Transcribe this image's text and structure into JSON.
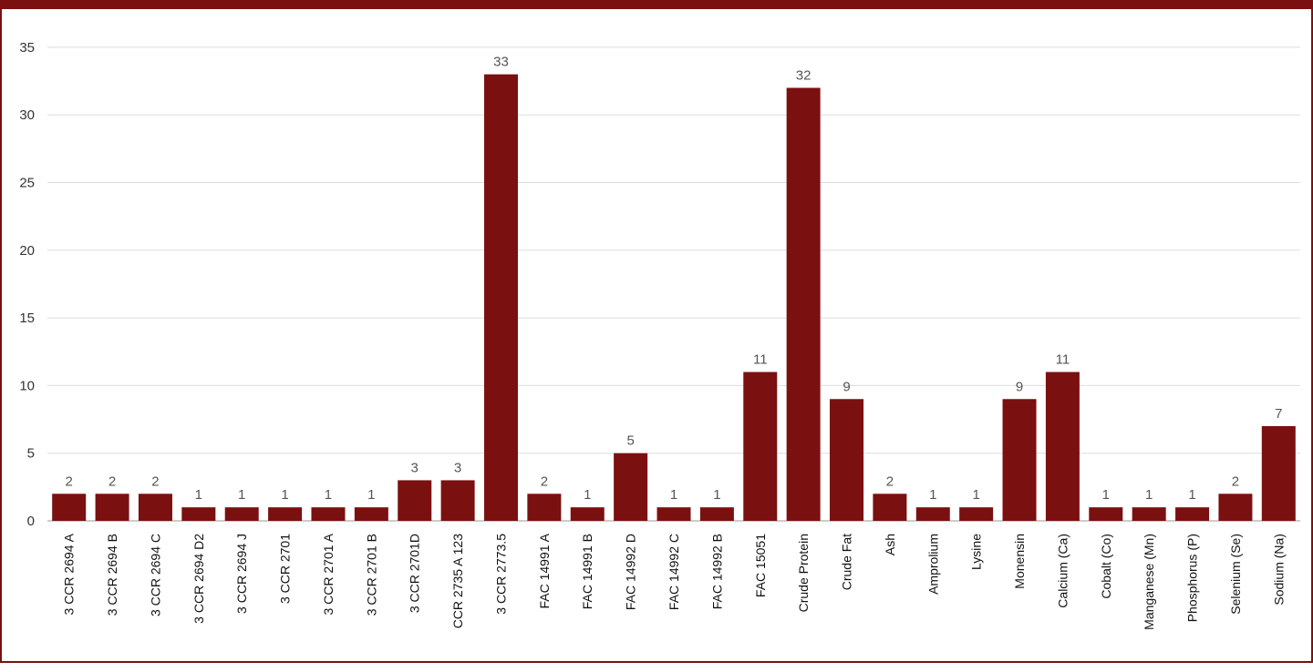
{
  "chart_data": {
    "type": "bar",
    "title": "",
    "xlabel": "",
    "ylabel": "",
    "ylim": [
      0,
      35
    ],
    "yticks": [
      0,
      5,
      10,
      15,
      20,
      25,
      30,
      35
    ],
    "grid": true,
    "legend": "none",
    "bar_color": "#7b1010",
    "categories": [
      "3 CCR 2694 A",
      "3 CCR 2694 B",
      "3 CCR 2694 C",
      "3 CCR 2694 D2",
      "3 CCR 2694 J",
      "3 CCR 2701",
      "3 CCR 2701 A",
      "3 CCR 2701 B",
      "3 CCR 2701D",
      "CCR 2735 A 123",
      "3 CCR 2773.5",
      "FAC 14991 A",
      "FAC 14991 B",
      "FAC 14992 D",
      "FAC 14992 C",
      "FAC 14992 B",
      "FAC 15051",
      "Crude Protein",
      "Crude Fat",
      "Ash",
      "Amprolium",
      "Lysine",
      "Monensin",
      "Calcium (Ca)",
      "Cobalt (Co)",
      "Manganese (Mn)",
      "Phosphorus (P)",
      "Selenium (Se)",
      "Sodium (Na)"
    ],
    "values": [
      2,
      2,
      2,
      1,
      1,
      1,
      1,
      1,
      3,
      3,
      33,
      2,
      1,
      5,
      1,
      1,
      11,
      32,
      9,
      2,
      1,
      1,
      9,
      11,
      1,
      1,
      1,
      2,
      7
    ]
  }
}
